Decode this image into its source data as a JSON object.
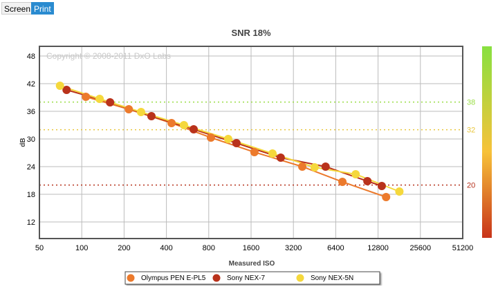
{
  "toolbar": {
    "screen_label": "Screen",
    "print_label": "Print"
  },
  "chart_data": {
    "type": "line",
    "title": "SNR 18%",
    "xlabel": "Measured ISO",
    "ylabel": "dB",
    "xscale": "log2",
    "xlim": [
      50,
      51200
    ],
    "ylim": [
      8.4,
      50.1
    ],
    "x_ticks": [
      "50",
      "100",
      "200",
      "400",
      "800",
      "1600",
      "3200",
      "6400",
      "12800",
      "25600",
      "51200"
    ],
    "y_ticks": [
      "12",
      "18",
      "24",
      "30",
      "36",
      "42",
      "48"
    ],
    "watermark": "Copyright © 2008-2011 DxO Labs",
    "grid": true,
    "reference_lines": [
      {
        "value": 38,
        "label": "38",
        "color": "#99dd44"
      },
      {
        "value": 32,
        "label": "32",
        "color": "#e8c53a"
      },
      {
        "value": 20,
        "label": "20",
        "color": "#b5301a"
      }
    ],
    "color_scale": {
      "top": "#88e040",
      "middle": "#f7c23a",
      "bottom": "#c8341a"
    },
    "legend_position": "bottom-center",
    "series": [
      {
        "name": "Olympus PEN E-PL5",
        "color": "#ec7a2c",
        "x": [
          107,
          216,
          435,
          829,
          1690,
          3700,
          7140,
          14600
        ],
        "y": [
          39.15,
          36.45,
          33.45,
          30.3,
          27.15,
          24.0,
          20.7,
          17.4
        ]
      },
      {
        "name": "Sony NEX-7",
        "color": "#b9321b",
        "x": [
          78,
          159,
          313,
          625,
          1260,
          2600,
          5420,
          10750,
          13600
        ],
        "y": [
          40.65,
          37.95,
          34.95,
          32.1,
          29.1,
          25.95,
          24.0,
          20.85,
          19.8
        ]
      },
      {
        "name": "Sony NEX-5N",
        "color": "#f5d83c",
        "x": [
          70,
          134,
          264,
          533,
          1100,
          2272,
          4530,
          8870,
          18150
        ],
        "y": [
          41.55,
          38.7,
          35.85,
          33.0,
          30.0,
          26.85,
          23.85,
          22.35,
          18.6
        ]
      }
    ]
  }
}
